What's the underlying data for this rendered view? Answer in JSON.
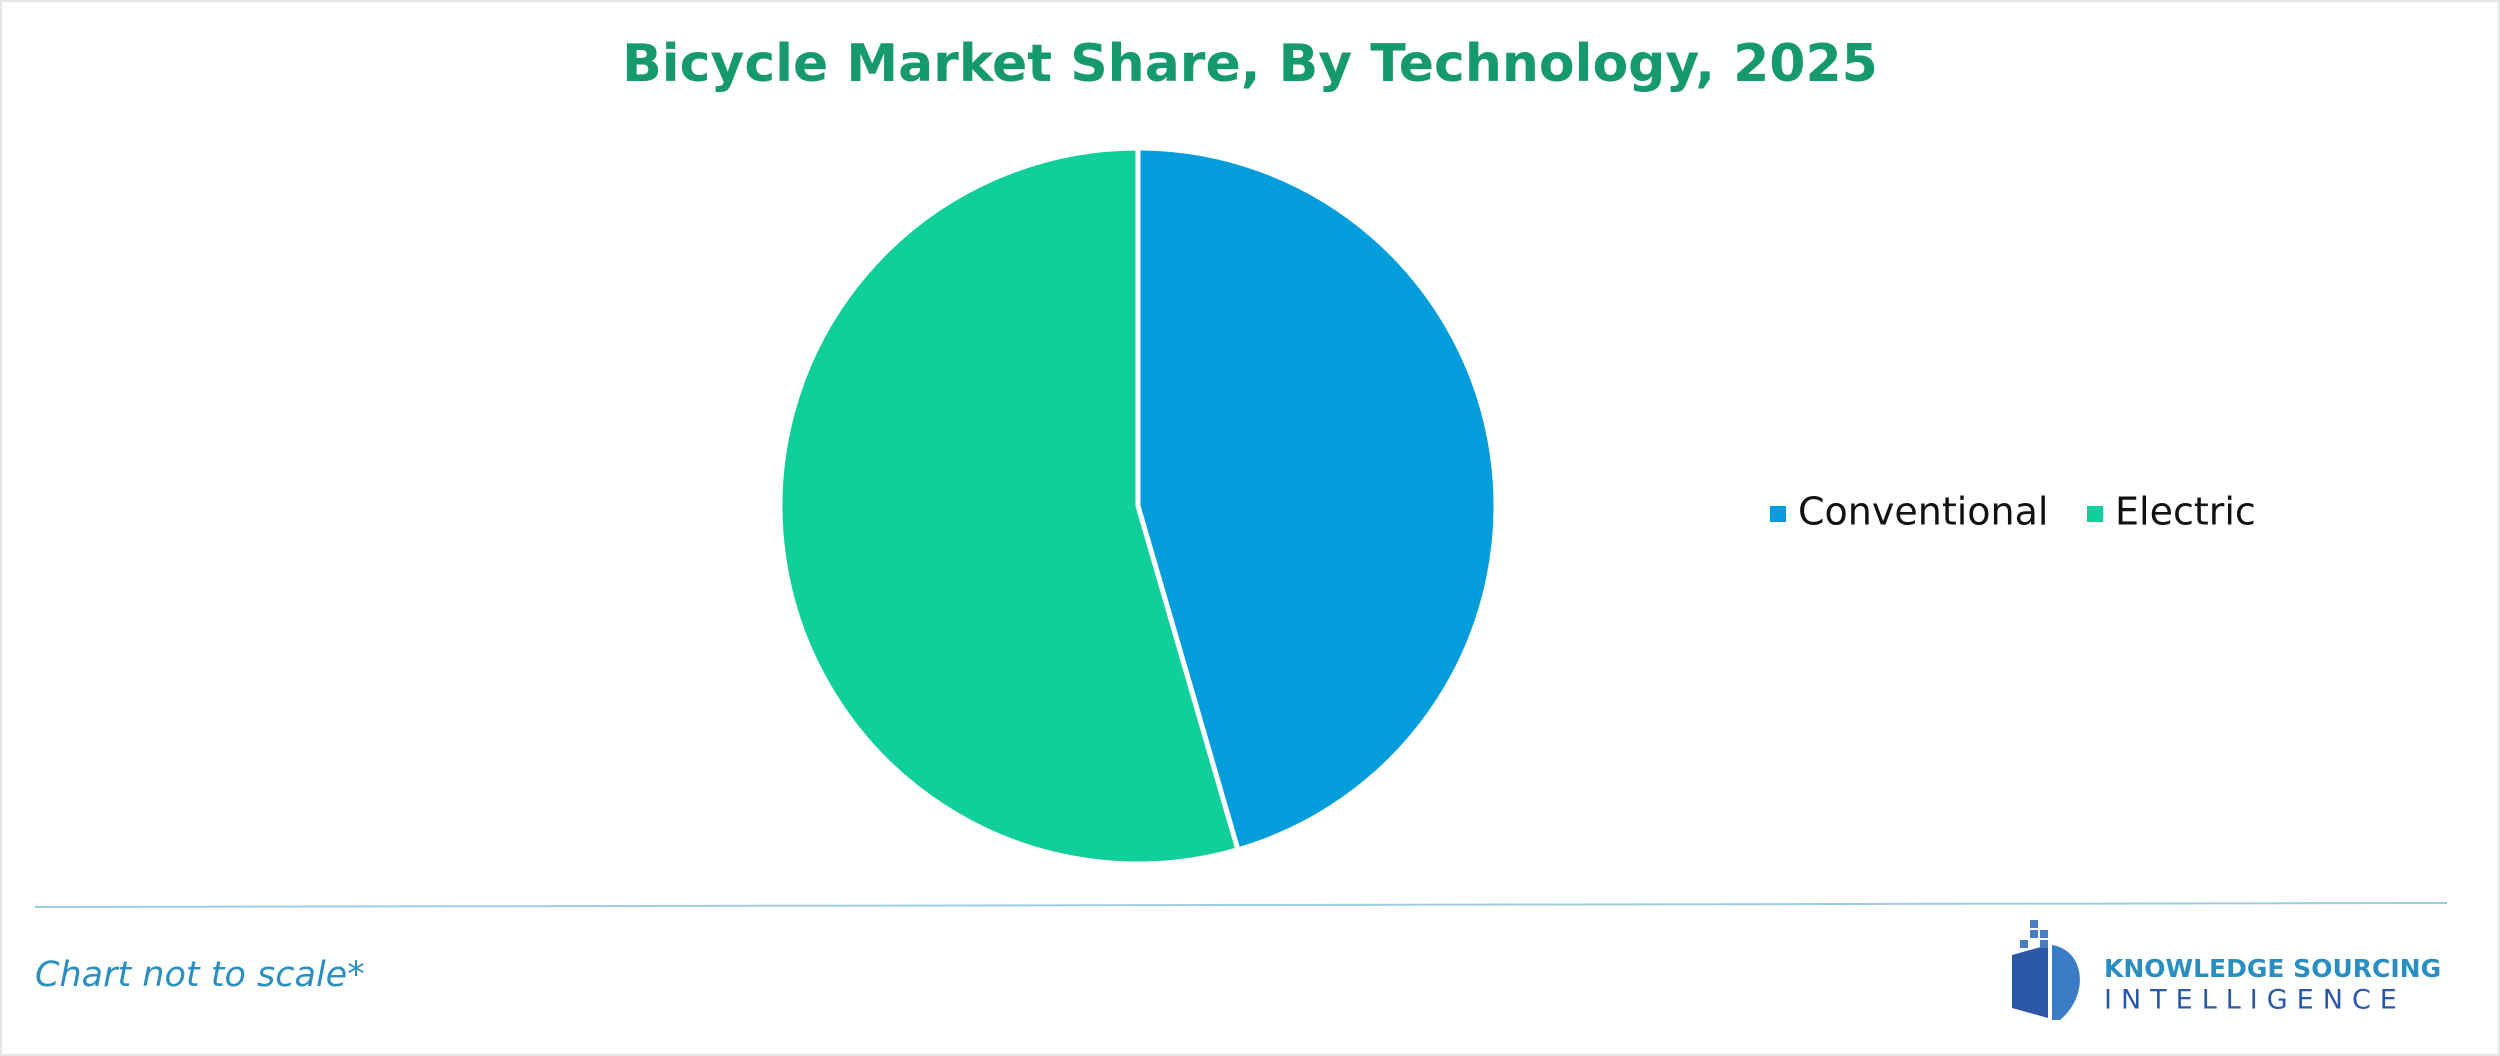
{
  "chart_data": {
    "type": "pie",
    "title": "Bicycle Market Share, By Technology, 2025",
    "categories": [
      "Conventional",
      "Electric"
    ],
    "values": [
      45.5,
      54.5
    ],
    "colors": [
      "#049ddb",
      "#10cf9a"
    ],
    "legend": "right"
  },
  "footer": {
    "note": "Chart not to scale*",
    "logo_line1": "KNOWLEDGE SOURCING",
    "logo_line2": "INTELLIGENCE"
  }
}
